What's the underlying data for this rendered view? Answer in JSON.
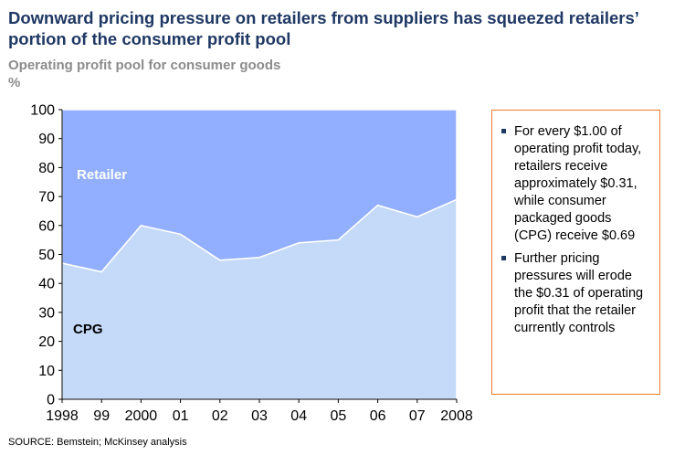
{
  "title": "Downward pricing pressure on retailers from suppliers has squeezed retailers’ portion of the consumer profit pool",
  "subtitle": "Operating profit pool for consumer goods",
  "unit": "%",
  "chart_data": {
    "type": "area",
    "stacked": true,
    "categories": [
      "1998",
      "99",
      "2000",
      "01",
      "02",
      "03",
      "04",
      "05",
      "06",
      "07",
      "2008"
    ],
    "series": [
      {
        "name": "CPG",
        "values": [
          47,
          44,
          60,
          57,
          48,
          49,
          54,
          55,
          67,
          63,
          69
        ],
        "color": "#c5daf9"
      },
      {
        "name": "Retailer",
        "values": [
          53,
          56,
          40,
          43,
          52,
          51,
          46,
          45,
          33,
          37,
          31
        ],
        "color": "#92afff"
      }
    ],
    "ylim": [
      0,
      100
    ],
    "yticks": [
      "0",
      "10",
      "20",
      "30",
      "40",
      "50",
      "60",
      "70",
      "80",
      "90",
      "100"
    ],
    "grid": false,
    "legend": "labels-inside-areas"
  },
  "notes": [
    "For every $1.00 of operating profit today, retailers receive approximately $0.31, while consumer packaged goods (CPG) receive $0.69",
    "Further pricing pressures will erode the $0.31 of operating profit that the retailer currently controls"
  ],
  "source": "SOURCE: Bemstein; McKinsey analysis",
  "colors": {
    "title": "#1f3864",
    "subtitle": "#8c8c8c",
    "note_border": "#f07c2d",
    "bullet": "#1f3864"
  }
}
